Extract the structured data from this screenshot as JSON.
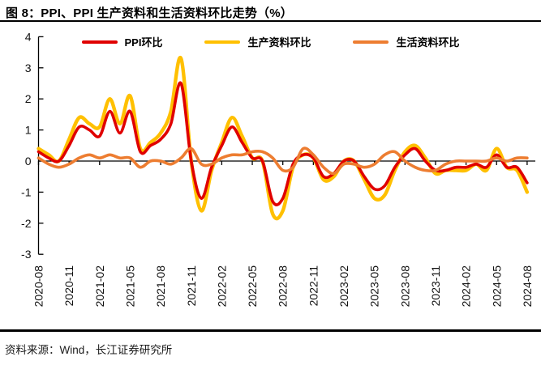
{
  "header": {
    "title": "图 8：PPI、PPI 生产资料和生活资料环比走势（%）"
  },
  "footer": {
    "source": "资料来源：Wind，长江证券研究所"
  },
  "colors": {
    "ppi_line": "#E00000",
    "producer_line": "#FFC000",
    "consumer_line": "#ED7D31",
    "axis": "#000000",
    "tick_label": "#111111"
  },
  "chart_data": {
    "type": "line",
    "smoothed": true,
    "grid": false,
    "legend_position": "top",
    "ylim": [
      -3,
      4
    ],
    "y_ticks": [
      4,
      3,
      2,
      1,
      0,
      -1,
      -2,
      -3
    ],
    "x": [
      "2020-08",
      "2020-09",
      "2020-10",
      "2020-11",
      "2020-12",
      "2021-01",
      "2021-02",
      "2021-03",
      "2021-04",
      "2021-05",
      "2021-06",
      "2021-07",
      "2021-08",
      "2021-09",
      "2021-10",
      "2021-11",
      "2021-12",
      "2022-01",
      "2022-02",
      "2022-03",
      "2022-04",
      "2022-05",
      "2022-06",
      "2022-07",
      "2022-08",
      "2022-09",
      "2022-10",
      "2022-11",
      "2022-12",
      "2023-01",
      "2023-02",
      "2023-03",
      "2023-04",
      "2023-05",
      "2023-06",
      "2023-07",
      "2023-08",
      "2023-09",
      "2023-10",
      "2023-11",
      "2023-12",
      "2024-01",
      "2024-02",
      "2024-03",
      "2024-04",
      "2024-05",
      "2024-06",
      "2024-07",
      "2024-08"
    ],
    "x_tick_labels": [
      "2020-08",
      "2020-11",
      "2021-02",
      "2021-05",
      "2021-08",
      "2021-11",
      "2022-02",
      "2022-05",
      "2022-08",
      "2022-11",
      "2023-02",
      "2023-05",
      "2023-08",
      "2023-11",
      "2024-02",
      "2024-05",
      "2024-08"
    ],
    "series": [
      {
        "name": "PPI环比",
        "color": "#E00000",
        "values": [
          0.3,
          0.1,
          0.0,
          0.5,
          1.1,
          1.0,
          0.8,
          1.6,
          0.9,
          1.6,
          0.3,
          0.5,
          0.7,
          1.2,
          2.5,
          0.0,
          -1.2,
          -0.2,
          0.5,
          1.1,
          0.6,
          0.1,
          0.0,
          -1.3,
          -1.2,
          -0.1,
          0.2,
          0.1,
          -0.5,
          -0.4,
          0.0,
          0.0,
          -0.5,
          -0.9,
          -0.8,
          -0.2,
          0.2,
          0.4,
          0.0,
          -0.3,
          -0.3,
          -0.2,
          -0.2,
          -0.1,
          -0.2,
          0.2,
          -0.2,
          -0.2,
          -0.7
        ]
      },
      {
        "name": "生产资料环比",
        "color": "#FFC000",
        "values": [
          0.4,
          0.2,
          0.0,
          0.7,
          1.4,
          1.2,
          1.1,
          2.0,
          1.2,
          2.1,
          0.4,
          0.6,
          0.9,
          1.6,
          3.3,
          0.0,
          -1.6,
          -0.3,
          0.6,
          1.4,
          0.8,
          0.1,
          0.0,
          -1.7,
          -1.6,
          -0.2,
          0.2,
          0.1,
          -0.6,
          -0.5,
          0.0,
          0.0,
          -0.6,
          -1.2,
          -1.1,
          -0.3,
          0.3,
          0.5,
          0.1,
          -0.4,
          -0.3,
          -0.3,
          -0.3,
          -0.1,
          -0.3,
          0.4,
          -0.2,
          -0.3,
          -1.0
        ]
      },
      {
        "name": "生活资料环比",
        "color": "#ED7D31",
        "values": [
          0.1,
          -0.1,
          -0.2,
          -0.1,
          0.1,
          0.2,
          0.1,
          0.2,
          0.1,
          0.1,
          -0.2,
          0.0,
          0.0,
          -0.1,
          0.1,
          0.4,
          -0.1,
          -0.1,
          0.1,
          0.2,
          0.2,
          0.3,
          0.3,
          0.1,
          -0.3,
          -0.2,
          0.4,
          0.2,
          -0.2,
          -0.4,
          -0.1,
          -0.1,
          -0.2,
          -0.1,
          0.2,
          0.3,
          0.0,
          -0.2,
          -0.3,
          -0.3,
          -0.1,
          0.0,
          0.0,
          0.0,
          0.0,
          0.1,
          0.0,
          0.1,
          0.1
        ]
      }
    ]
  }
}
